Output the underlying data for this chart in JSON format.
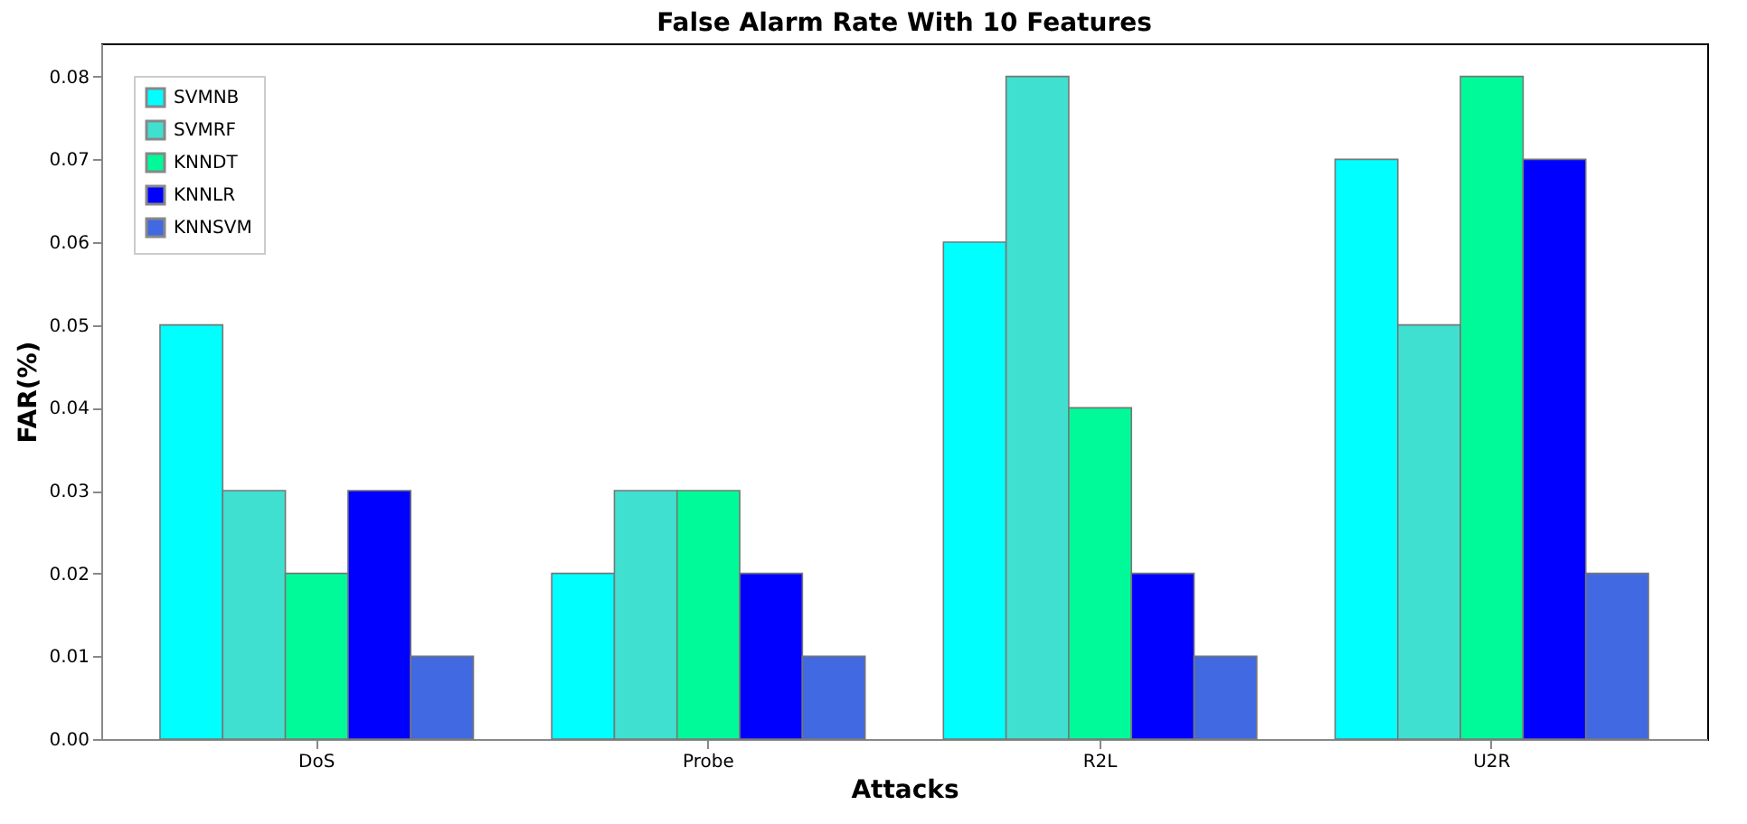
{
  "chart_data": {
    "type": "bar",
    "title": "False Alarm Rate With 10 Features",
    "xlabel": "Attacks",
    "ylabel": "FAR(%)",
    "categories": [
      "DoS",
      "Probe",
      "R2L",
      "U2R"
    ],
    "series": [
      {
        "name": "SVMNB",
        "color": "#00ffff",
        "values": [
          0.05,
          0.02,
          0.06,
          0.07
        ]
      },
      {
        "name": "SVMRF",
        "color": "#40e0d0",
        "values": [
          0.03,
          0.03,
          0.08,
          0.05
        ]
      },
      {
        "name": "KNNDT",
        "color": "#00fa9a",
        "values": [
          0.02,
          0.03,
          0.04,
          0.08
        ]
      },
      {
        "name": "KNNLR",
        "color": "#0000ff",
        "values": [
          0.03,
          0.02,
          0.02,
          0.07
        ]
      },
      {
        "name": "KNNSVM",
        "color": "#4169e1",
        "values": [
          0.01,
          0.01,
          0.01,
          0.02
        ]
      }
    ],
    "ylim": [
      0,
      0.084
    ],
    "yticks": [
      {
        "value": 0,
        "label": "0.00"
      },
      {
        "value": 0.01,
        "label": "0.01"
      },
      {
        "value": 0.02,
        "label": "0.02"
      },
      {
        "value": 0.03,
        "label": "0.03"
      },
      {
        "value": 0.04,
        "label": "0.04"
      },
      {
        "value": 0.05,
        "label": "0.05"
      },
      {
        "value": 0.06,
        "label": "0.06"
      },
      {
        "value": 0.07,
        "label": "0.07"
      },
      {
        "value": 0.08,
        "label": "0.08"
      }
    ],
    "grid": false,
    "legend": "top left"
  }
}
